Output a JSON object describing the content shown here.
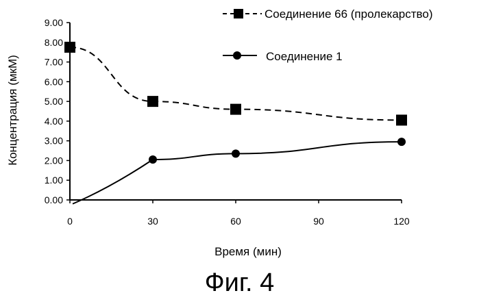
{
  "caption": "Фиг. 4",
  "chart_data": {
    "type": "line",
    "xlabel": "Время (мин)",
    "ylabel": "Концентрация (мкМ)",
    "xlim": [
      0,
      120
    ],
    "ylim": [
      0,
      9
    ],
    "x_ticks": [
      "0",
      "30",
      "60",
      "90",
      "120"
    ],
    "y_ticks": [
      "0.00",
      "1.00",
      "2.00",
      "3.00",
      "4.00",
      "5.00",
      "6.00",
      "7.00",
      "8.00",
      "9.00"
    ],
    "grid": false,
    "legend_position": "top-right",
    "series": [
      {
        "name": "Соединение 66 (пролекарство)",
        "marker": "square",
        "line_style": "dashed",
        "x": [
          0,
          30,
          60,
          120
        ],
        "y": [
          7.75,
          5.0,
          4.6,
          4.05
        ]
      },
      {
        "name": "Соединение 1",
        "marker": "circle",
        "line_style": "solid",
        "x": [
          30,
          60,
          120
        ],
        "y": [
          2.05,
          2.35,
          2.95
        ]
      }
    ]
  }
}
